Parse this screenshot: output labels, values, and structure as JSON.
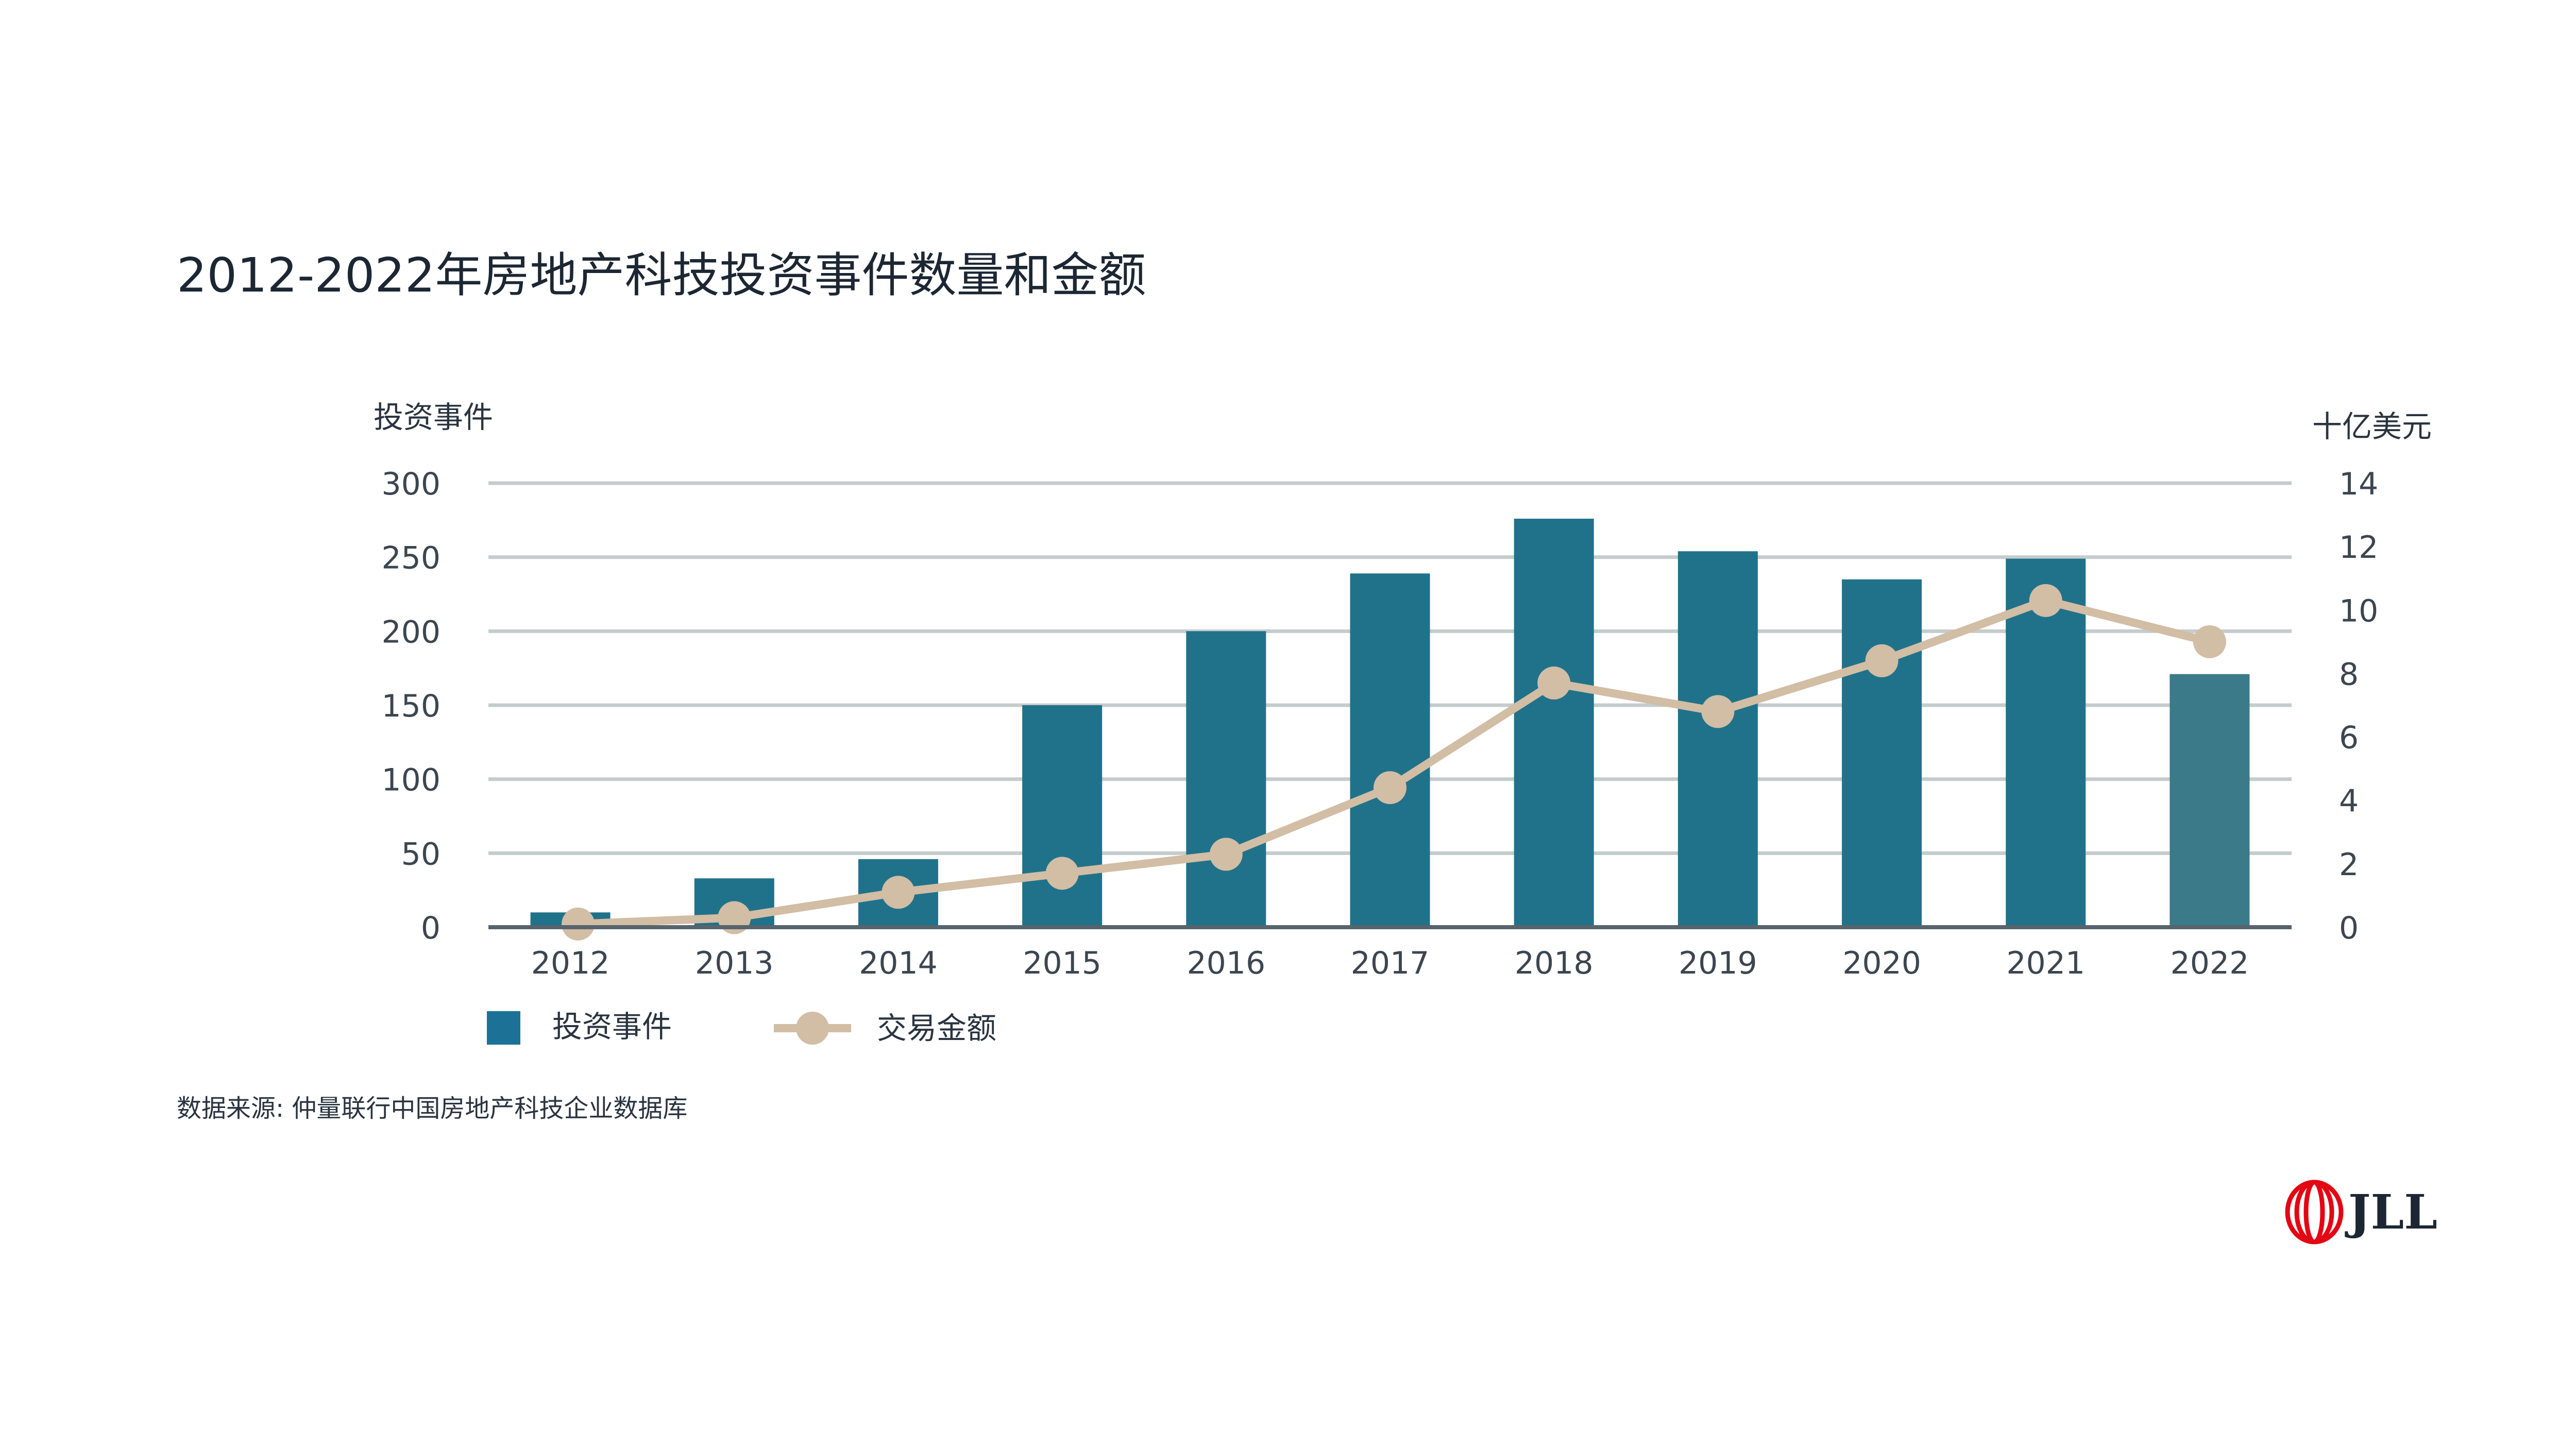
{
  "title": "2012-2022年房地产科技投资事件数量和金额",
  "source": "数据来源: 仲量联行中国房地产科技企业数据库",
  "logo": {
    "text": "JLL",
    "color": "#e30613"
  },
  "colors": {
    "bar": "#20728a",
    "bar_last": "#3a7a89",
    "line": "#d2bda5",
    "grid": "#c4cccc",
    "axis": "#58646d",
    "legend_bar": "#1b7296"
  },
  "chart_data": {
    "type": "bar",
    "x": [
      "2012",
      "2013",
      "2014",
      "2015",
      "2016",
      "2017",
      "2018",
      "2019",
      "2020",
      "2021",
      "2022"
    ],
    "y_left_label": "投资事件",
    "y_right_label": "十亿美元",
    "y_left_lim": [
      0,
      300
    ],
    "y_left_ticks": [
      0,
      50,
      100,
      150,
      200,
      250,
      300
    ],
    "y_right_lim": [
      0,
      14
    ],
    "y_right_ticks": [
      0,
      2,
      4,
      6,
      8,
      10,
      12,
      14
    ],
    "grid": true,
    "legend_position": "bottom-left",
    "series": [
      {
        "name": "投资事件",
        "type": "bar",
        "axis": "left",
        "values": [
          10,
          33,
          46,
          150,
          200,
          239,
          276,
          254,
          235,
          249,
          171
        ]
      },
      {
        "name": "交易金额",
        "type": "line",
        "axis": "right",
        "values": [
          0.1,
          0.3,
          1.1,
          1.7,
          2.3,
          4.4,
          7.7,
          6.8,
          8.4,
          10.3,
          9.0
        ]
      }
    ]
  }
}
